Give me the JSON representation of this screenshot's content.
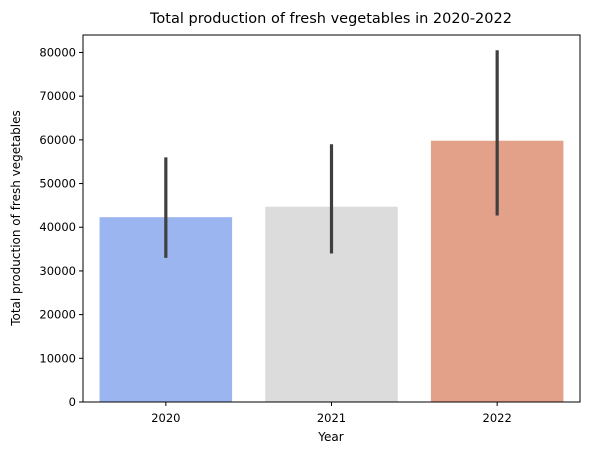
{
  "chart_data": {
    "type": "bar",
    "title": "Total production of fresh vegetables in 2020-2022",
    "xlabel": "Year",
    "ylabel": "Total production of fresh vegetables",
    "categories": [
      "2020",
      "2021",
      "2022"
    ],
    "values": [
      42300,
      44700,
      59800
    ],
    "error_bars": [
      {
        "low": 33000,
        "high": 56000
      },
      {
        "low": 34000,
        "high": 59000
      },
      {
        "low": 42700,
        "high": 80500
      }
    ],
    "bar_colors": [
      "#9bb5f1",
      "#dcdcdc",
      "#e4a18a"
    ],
    "error_color": "#3f3f3f",
    "ylim": [
      0,
      84000
    ],
    "yticks": [
      0,
      10000,
      20000,
      30000,
      40000,
      50000,
      60000,
      70000,
      80000
    ],
    "ytick_labels": [
      "0",
      "10000",
      "20000",
      "30000",
      "40000",
      "50000",
      "60000",
      "70000",
      "80000"
    ],
    "grid": false,
    "legend": "none"
  }
}
